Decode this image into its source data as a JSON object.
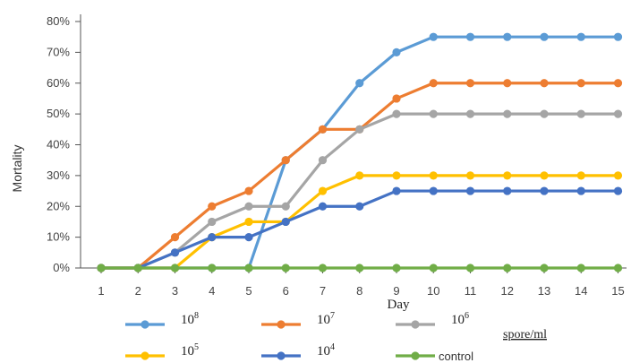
{
  "chart_data": {
    "type": "line",
    "title": "",
    "xlabel": "Day",
    "ylabel": "Mortality",
    "x": [
      1,
      2,
      3,
      4,
      5,
      6,
      7,
      8,
      9,
      10,
      11,
      12,
      13,
      14,
      15
    ],
    "ylim": [
      0,
      80
    ],
    "yticks": [
      "0%",
      "10%",
      "20%",
      "30%",
      "40%",
      "50%",
      "60%",
      "70%",
      "80%"
    ],
    "grid": false,
    "legend_position": "bottom",
    "legend_units": "spore/ml",
    "series": [
      {
        "key": "s8",
        "base": "10",
        "exp": "8",
        "color": "#5B9BD5",
        "values": [
          0,
          0,
          0,
          0,
          0,
          35,
          45,
          60,
          70,
          75,
          75,
          75,
          75,
          75,
          75
        ]
      },
      {
        "key": "s7",
        "base": "10",
        "exp": "7",
        "color": "#ED7D31",
        "values": [
          0,
          0,
          10,
          20,
          25,
          35,
          45,
          45,
          55,
          60,
          60,
          60,
          60,
          60,
          60
        ]
      },
      {
        "key": "s6",
        "base": "10",
        "exp": "6",
        "color": "#A5A5A5",
        "values": [
          0,
          0,
          5,
          15,
          20,
          20,
          35,
          45,
          50,
          50,
          50,
          50,
          50,
          50,
          50
        ]
      },
      {
        "key": "s5",
        "base": "10",
        "exp": "5",
        "color": "#FFC000",
        "values": [
          0,
          0,
          0,
          10,
          15,
          15,
          25,
          30,
          30,
          30,
          30,
          30,
          30,
          30,
          30
        ]
      },
      {
        "key": "s4",
        "base": "10",
        "exp": "4",
        "color": "#4472C4",
        "values": [
          0,
          0,
          5,
          10,
          10,
          15,
          20,
          20,
          25,
          25,
          25,
          25,
          25,
          25,
          25
        ]
      },
      {
        "key": "control",
        "name": "control",
        "color": "#70AD47",
        "values": [
          0,
          0,
          0,
          0,
          0,
          0,
          0,
          0,
          0,
          0,
          0,
          0,
          0,
          0,
          0
        ]
      }
    ]
  }
}
